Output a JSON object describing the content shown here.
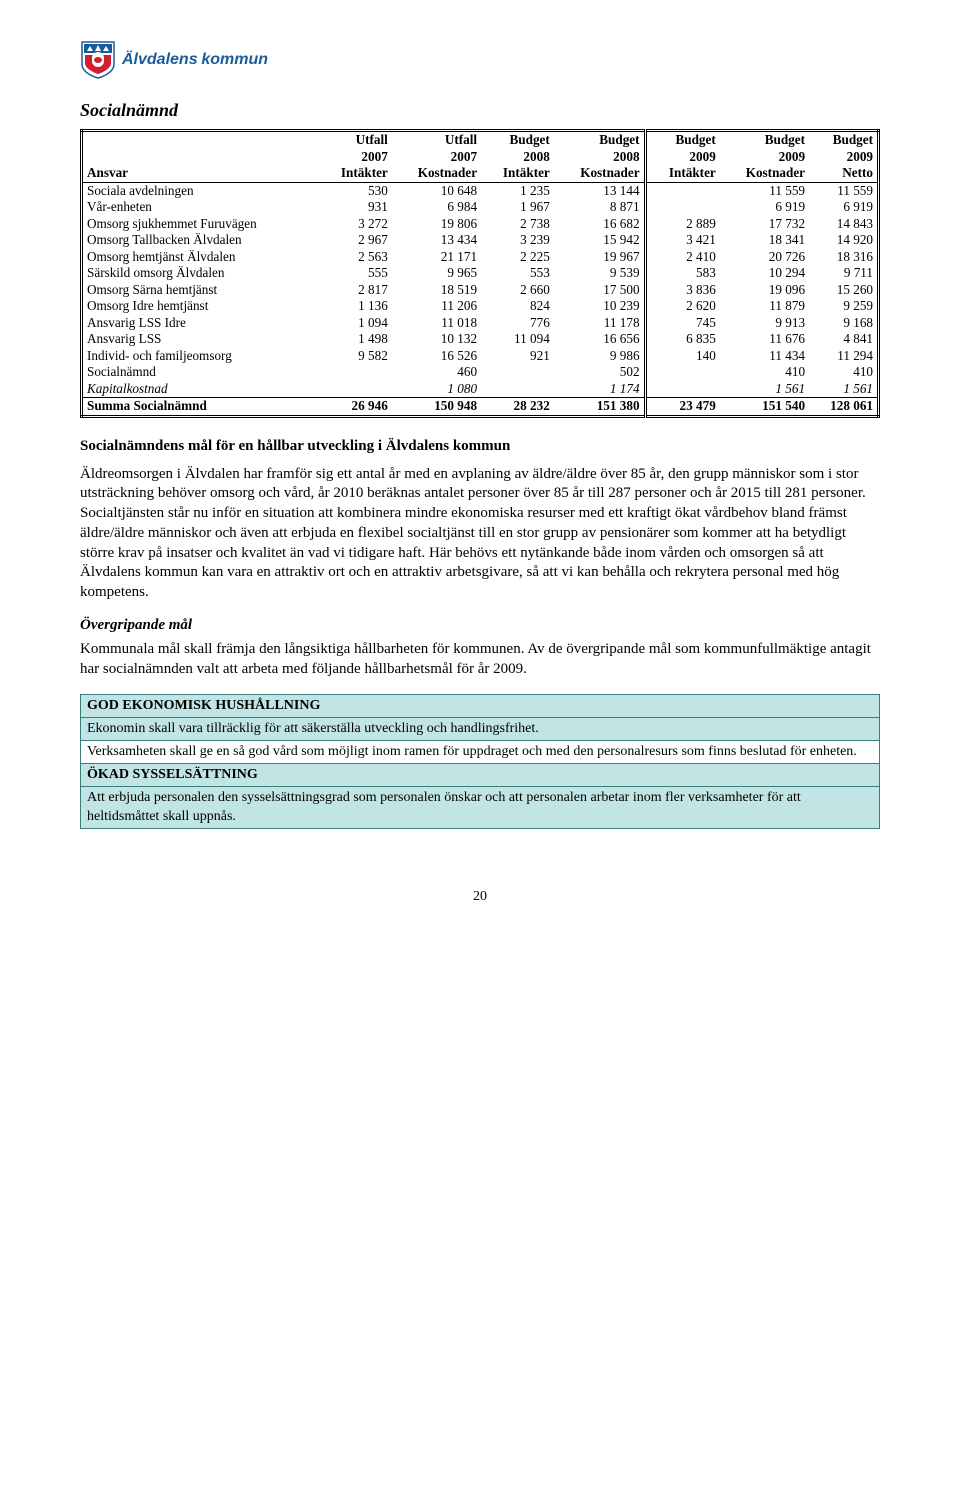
{
  "logo": {
    "name": "Älvdalens",
    "sub": "kommun"
  },
  "title": "Socialnämnd",
  "table": {
    "header1": [
      "",
      "Utfall",
      "Utfall",
      "Budget",
      "Budget",
      "Budget",
      "Budget",
      "Budget"
    ],
    "header2": [
      "",
      "2007",
      "2007",
      "2008",
      "2008",
      "2009",
      "2009",
      "2009"
    ],
    "header3": [
      "Ansvar",
      "Intäkter",
      "Kostnader",
      "Intäkter",
      "Kostnader",
      "Intäkter",
      "Kostnader",
      "Netto"
    ],
    "rows": [
      {
        "label": "Sociala avdelningen",
        "c": [
          "530",
          "10 648",
          "1 235",
          "13 144",
          "",
          "11 559",
          "11 559"
        ]
      },
      {
        "label": "Vår-enheten",
        "c": [
          "931",
          "6 984",
          "1 967",
          "8 871",
          "",
          "6 919",
          "6 919"
        ]
      },
      {
        "label": "Omsorg sjukhemmet Furuvägen",
        "c": [
          "3 272",
          "19 806",
          "2 738",
          "16 682",
          "2 889",
          "17 732",
          "14 843"
        ]
      },
      {
        "label": "Omsorg Tallbacken Älvdalen",
        "c": [
          "2 967",
          "13 434",
          "3 239",
          "15 942",
          "3 421",
          "18 341",
          "14 920"
        ]
      },
      {
        "label": "Omsorg hemtjänst Älvdalen",
        "c": [
          "2 563",
          "21 171",
          "2 225",
          "19 967",
          "2 410",
          "20 726",
          "18 316"
        ]
      },
      {
        "label": "Särskild omsorg Älvdalen",
        "c": [
          "555",
          "9 965",
          "553",
          "9 539",
          "583",
          "10 294",
          "9 711"
        ]
      },
      {
        "label": "Omsorg Särna hemtjänst",
        "c": [
          "2 817",
          "18 519",
          "2 660",
          "17 500",
          "3 836",
          "19 096",
          "15 260"
        ]
      },
      {
        "label": "Omsorg Idre hemtjänst",
        "c": [
          "1 136",
          "11 206",
          "824",
          "10 239",
          "2 620",
          "11 879",
          "9 259"
        ]
      },
      {
        "label": "Ansvarig LSS Idre",
        "c": [
          "1 094",
          "11 018",
          "776",
          "11 178",
          "745",
          "9 913",
          "9 168"
        ]
      },
      {
        "label": "Ansvarig LSS",
        "c": [
          "1 498",
          "10 132",
          "11 094",
          "16 656",
          "6 835",
          "11 676",
          "4 841"
        ]
      },
      {
        "label": "Individ- och familjeomsorg",
        "c": [
          "9 582",
          "16 526",
          "921",
          "9 986",
          "140",
          "11 434",
          "11 294"
        ]
      },
      {
        "label": "Socialnämnd",
        "c": [
          "",
          "460",
          "",
          "502",
          "",
          "410",
          "410"
        ]
      },
      {
        "label": "Kapitalkostnad",
        "c": [
          "",
          "1 080",
          "",
          "1 174",
          "",
          "1 561",
          "1 561"
        ],
        "italic": true
      }
    ],
    "sum": {
      "label": "Summa Socialnämnd",
      "c": [
        "26 946",
        "150 948",
        "28 232",
        "151 380",
        "23 479",
        "151 540",
        "128 061"
      ]
    }
  },
  "section_head": "Socialnämndens mål för en hållbar utveckling i Älvdalens kommun",
  "para1": "Äldreomsorgen i Älvdalen har framför sig ett antal år med en avplaning av äldre/äldre över 85 år, den grupp människor som i stor utsträckning behöver omsorg och vård, år 2010 beräknas antalet personer över 85 år till 287 personer och år 2015 till 281 personer. Socialtjänsten står nu inför en situation att kombinera mindre ekonomiska resurser med ett kraftigt ökat vårdbehov bland främst äldre/äldre människor och även att erbjuda en flexibel socialtjänst till en stor grupp av pensionärer som kommer att ha betydligt större krav på insatser och kvalitet än vad vi tidigare haft. Här behövs ett nytänkande både inom vården och omsorgen så att Älvdalens kommun kan vara en attraktiv ort och en attraktiv arbetsgivare, så att vi kan behålla och rekrytera personal med hög kompetens.",
  "sub_italic": "Övergripande mål",
  "para2": "Kommunala mål skall främja den långsiktiga hållbarheten för kommunen. Av de övergripande mål som kommunfullmäktige antagit har socialnämnden valt att arbeta med följande hållbarhetsmål för år 2009.",
  "goals": {
    "row1": "GOD EKONOMISK HUSHÅLLNING",
    "row2": "Ekonomin skall vara tillräcklig för att säkerställa utveckling och handlingsfrihet.",
    "row3": "Verksamheten skall ge en så god vård som möjligt inom ramen för uppdraget och med den personalresurs som finns beslutad för enheten.",
    "row4": "ÖKAD SYSSELSÄTTNING",
    "row5": "Att erbjuda personalen den sysselsättningsgrad som personalen önskar och att personalen arbetar inom fler verksamheter för att heltidsmåttet skall uppnås."
  },
  "pagenum": "20",
  "colors": {
    "goal_bg": "#c1e4e4",
    "goal_border": "#3a7d7d"
  }
}
